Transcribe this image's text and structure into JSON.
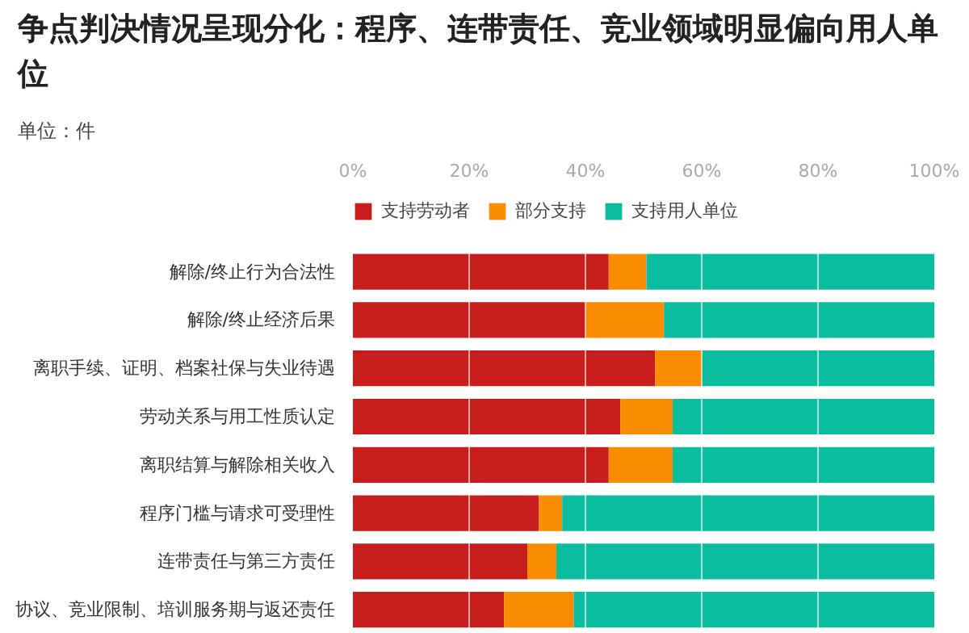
{
  "chart_data": {
    "type": "bar",
    "orientation": "horizontal",
    "stacked": true,
    "title": "争点判决情况呈现分化：程序、连带责任、竞业领域明显偏向用人单位",
    "subtitle": "单位：件",
    "categories": [
      "解除/终止行为合法性",
      "解除/终止经济后果",
      "离职手续、证明、档案社保与失业待遇",
      "劳动关系与用工性质认定",
      "离职结算与解除相关收入",
      "程序门槛与请求可受理性",
      "连带责任与第三方责任",
      "协议、竞业限制、培训服务期与返还责任"
    ],
    "series": [
      {
        "name": "支持劳动者",
        "color": "#c71d1d",
        "values": [
          44,
          40,
          52,
          46,
          44,
          32,
          30,
          26
        ]
      },
      {
        "name": "部分支持",
        "color": "#f98c00",
        "values": [
          6.5,
          13.5,
          8,
          9,
          11,
          4,
          5,
          12
        ]
      },
      {
        "name": "支持用人单位",
        "color": "#0bbd9f",
        "values": [
          49.5,
          46.5,
          40,
          45,
          45,
          64,
          65,
          62
        ]
      }
    ],
    "xlim": [
      0,
      100
    ],
    "xticks": [
      {
        "value": 0,
        "label": "0%"
      },
      {
        "value": 20,
        "label": "20%"
      },
      {
        "value": 40,
        "label": "40%"
      },
      {
        "value": 60,
        "label": "60%"
      },
      {
        "value": 80,
        "label": "80%"
      },
      {
        "value": 100,
        "label": "100%"
      }
    ],
    "grid": "x",
    "legend": "top left"
  }
}
